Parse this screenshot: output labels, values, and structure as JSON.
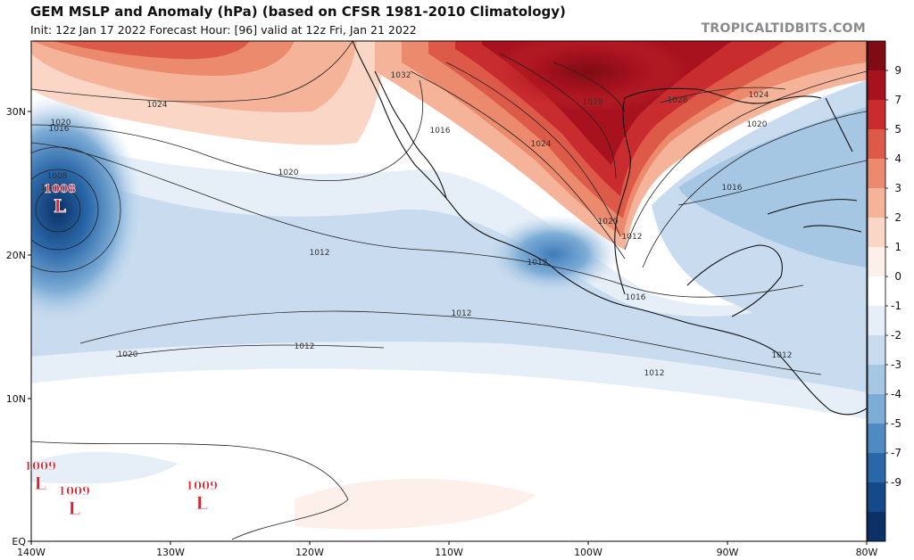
{
  "header": {
    "title": "GEM MSLP and Anomaly (hPa) (based on CFSR 1981-2010 Climatology)",
    "subtitle": "Init: 12z Jan 17 2022   Forecast Hour: [96]   valid at 12z Fri, Jan 21 2022",
    "credit": "TROPICALTIDBITS.COM"
  },
  "map": {
    "lat_labels": [
      "30N",
      "20N",
      "10N",
      "EQ"
    ],
    "lon_labels": [
      "140W",
      "130W",
      "120W",
      "110W",
      "100W",
      "90W",
      "80W"
    ],
    "isobar_labels": [
      "1024",
      "1020",
      "1016",
      "1020",
      "1016",
      "1012",
      "1008",
      "1016",
      "1012",
      "1012",
      "1012",
      "1020",
      "1032",
      "1028",
      "1024",
      "1020",
      "1012",
      "1016",
      "1012",
      "1028",
      "1024",
      "1020",
      "1016",
      "1012"
    ],
    "pressure_systems": [
      {
        "type": "L",
        "value": "1008"
      },
      {
        "type": "L",
        "value": "1009"
      },
      {
        "type": "L",
        "value": "1009"
      },
      {
        "type": "L",
        "value": "1009"
      }
    ]
  },
  "colorbar": {
    "labels": [
      "9",
      "7",
      "5",
      "4",
      "3",
      "2",
      "1",
      "0",
      "-1",
      "-2",
      "-3",
      "-4",
      "-5",
      "-7",
      "-9"
    ],
    "colors": [
      "#7f0c14",
      "#a8121e",
      "#c92c2e",
      "#dd5a48",
      "#ec8a6e",
      "#f5b49a",
      "#fad6c6",
      "#fdf0ea",
      "#ffffff",
      "#e6eff8",
      "#c9dcef",
      "#a6c7e4",
      "#7dacd6",
      "#4f8ac2",
      "#2a67a8",
      "#154a8a",
      "#0b3166"
    ]
  }
}
